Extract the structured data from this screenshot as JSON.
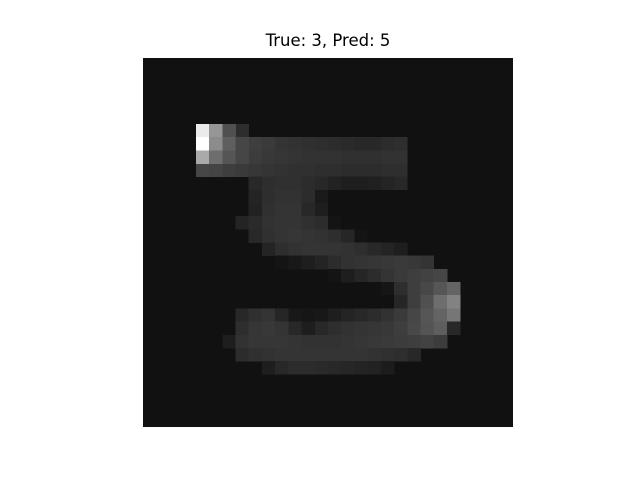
{
  "figure": {
    "title": "True: 3, Pred: 5"
  },
  "image": {
    "grid_size": 28,
    "description_colormap": "gray",
    "background_level": 17,
    "bright_cells": [
      [
        5,
        4,
        235
      ],
      [
        5,
        5,
        150
      ],
      [
        5,
        6,
        80
      ],
      [
        6,
        4,
        255
      ],
      [
        6,
        5,
        140
      ],
      [
        6,
        6,
        95
      ],
      [
        6,
        7,
        70
      ],
      [
        7,
        4,
        170
      ],
      [
        7,
        5,
        110
      ],
      [
        7,
        6,
        85
      ],
      [
        7,
        7,
        70
      ]
    ],
    "stroke_cells": [
      [
        5,
        7,
        45
      ],
      [
        6,
        8,
        62
      ],
      [
        6,
        9,
        58
      ],
      [
        6,
        10,
        52
      ],
      [
        6,
        11,
        50
      ],
      [
        6,
        12,
        48
      ],
      [
        6,
        13,
        46
      ],
      [
        6,
        14,
        44
      ],
      [
        6,
        15,
        42
      ],
      [
        6,
        16,
        40
      ],
      [
        6,
        17,
        40
      ],
      [
        6,
        18,
        44
      ],
      [
        6,
        19,
        46
      ],
      [
        7,
        8,
        60
      ],
      [
        7,
        9,
        56
      ],
      [
        7,
        10,
        54
      ],
      [
        7,
        11,
        52
      ],
      [
        7,
        12,
        50
      ],
      [
        7,
        13,
        50
      ],
      [
        7,
        14,
        50
      ],
      [
        7,
        15,
        48
      ],
      [
        7,
        16,
        48
      ],
      [
        7,
        17,
        48
      ],
      [
        7,
        18,
        50
      ],
      [
        7,
        19,
        50
      ],
      [
        8,
        4,
        70
      ],
      [
        8,
        5,
        68
      ],
      [
        8,
        6,
        62
      ],
      [
        8,
        7,
        58
      ],
      [
        8,
        8,
        55
      ],
      [
        8,
        9,
        52
      ],
      [
        8,
        10,
        50
      ],
      [
        8,
        11,
        48
      ],
      [
        8,
        12,
        48
      ],
      [
        8,
        13,
        46
      ],
      [
        8,
        14,
        46
      ],
      [
        8,
        15,
        44
      ],
      [
        8,
        16,
        44
      ],
      [
        8,
        17,
        44
      ],
      [
        8,
        18,
        46
      ],
      [
        8,
        19,
        46
      ],
      [
        9,
        8,
        40
      ],
      [
        9,
        9,
        46
      ],
      [
        9,
        10,
        48
      ],
      [
        9,
        11,
        48
      ],
      [
        9,
        12,
        44
      ],
      [
        9,
        13,
        40
      ],
      [
        9,
        14,
        34
      ],
      [
        9,
        15,
        30
      ],
      [
        9,
        16,
        30
      ],
      [
        9,
        17,
        32
      ],
      [
        9,
        18,
        36
      ],
      [
        9,
        19,
        40
      ],
      [
        10,
        8,
        36
      ],
      [
        10,
        9,
        46
      ],
      [
        10,
        10,
        50
      ],
      [
        10,
        11,
        50
      ],
      [
        10,
        12,
        44
      ],
      [
        10,
        13,
        26
      ],
      [
        10,
        14,
        14
      ],
      [
        10,
        15,
        10
      ],
      [
        10,
        16,
        10
      ],
      [
        10,
        17,
        12
      ],
      [
        10,
        18,
        14
      ],
      [
        11,
        8,
        34
      ],
      [
        11,
        9,
        48
      ],
      [
        11,
        10,
        52
      ],
      [
        11,
        11,
        52
      ],
      [
        11,
        12,
        40
      ],
      [
        11,
        13,
        30
      ],
      [
        11,
        14,
        14
      ],
      [
        11,
        15,
        6
      ],
      [
        11,
        16,
        4
      ],
      [
        11,
        17,
        6
      ],
      [
        11,
        18,
        10
      ],
      [
        12,
        7,
        36
      ],
      [
        12,
        8,
        42
      ],
      [
        12,
        9,
        50
      ],
      [
        12,
        10,
        52
      ],
      [
        12,
        11,
        52
      ],
      [
        12,
        12,
        48
      ],
      [
        12,
        13,
        44
      ],
      [
        12,
        14,
        20
      ],
      [
        12,
        15,
        8
      ],
      [
        12,
        16,
        6
      ],
      [
        12,
        17,
        8
      ],
      [
        12,
        18,
        12
      ],
      [
        13,
        8,
        40
      ],
      [
        13,
        9,
        48
      ],
      [
        13,
        10,
        52
      ],
      [
        13,
        11,
        54
      ],
      [
        13,
        12,
        52
      ],
      [
        13,
        13,
        50
      ],
      [
        13,
        14,
        46
      ],
      [
        13,
        15,
        38
      ],
      [
        13,
        16,
        20
      ],
      [
        13,
        17,
        12
      ],
      [
        13,
        18,
        14
      ],
      [
        14,
        9,
        36
      ],
      [
        14,
        10,
        46
      ],
      [
        14,
        11,
        50
      ],
      [
        14,
        12,
        52
      ],
      [
        14,
        13,
        52
      ],
      [
        14,
        14,
        52
      ],
      [
        14,
        15,
        50
      ],
      [
        14,
        16,
        46
      ],
      [
        14,
        17,
        40
      ],
      [
        14,
        18,
        36
      ],
      [
        14,
        19,
        30
      ],
      [
        15,
        10,
        20
      ],
      [
        15,
        11,
        24
      ],
      [
        15,
        12,
        30
      ],
      [
        15,
        13,
        36
      ],
      [
        15,
        14,
        44
      ],
      [
        15,
        15,
        50
      ],
      [
        15,
        16,
        52
      ],
      [
        15,
        17,
        54
      ],
      [
        15,
        18,
        56
      ],
      [
        15,
        19,
        58
      ],
      [
        15,
        20,
        56
      ],
      [
        15,
        21,
        52
      ],
      [
        16,
        14,
        20
      ],
      [
        16,
        15,
        30
      ],
      [
        16,
        16,
        38
      ],
      [
        16,
        17,
        44
      ],
      [
        16,
        18,
        52
      ],
      [
        16,
        19,
        58
      ],
      [
        16,
        20,
        62
      ],
      [
        16,
        21,
        66
      ],
      [
        16,
        22,
        70
      ],
      [
        17,
        16,
        14
      ],
      [
        17,
        17,
        14
      ],
      [
        17,
        18,
        22
      ],
      [
        17,
        19,
        46
      ],
      [
        17,
        20,
        62
      ],
      [
        17,
        21,
        72
      ],
      [
        17,
        22,
        86
      ],
      [
        17,
        23,
        100
      ],
      [
        18,
        17,
        10
      ],
      [
        18,
        18,
        14
      ],
      [
        18,
        19,
        38
      ],
      [
        18,
        20,
        62
      ],
      [
        18,
        21,
        80
      ],
      [
        18,
        22,
        110
      ],
      [
        18,
        23,
        130
      ],
      [
        19,
        7,
        40
      ],
      [
        19,
        8,
        48
      ],
      [
        19,
        9,
        52
      ],
      [
        19,
        10,
        38
      ],
      [
        19,
        11,
        24
      ],
      [
        19,
        12,
        22
      ],
      [
        19,
        13,
        24
      ],
      [
        19,
        14,
        30
      ],
      [
        19,
        15,
        36
      ],
      [
        19,
        16,
        40
      ],
      [
        19,
        17,
        44
      ],
      [
        19,
        18,
        50
      ],
      [
        19,
        19,
        58
      ],
      [
        19,
        20,
        70
      ],
      [
        19,
        21,
        86
      ],
      [
        19,
        22,
        100
      ],
      [
        19,
        23,
        118
      ],
      [
        20,
        7,
        46
      ],
      [
        20,
        8,
        54
      ],
      [
        20,
        9,
        56
      ],
      [
        20,
        10,
        52
      ],
      [
        20,
        11,
        40
      ],
      [
        20,
        12,
        30
      ],
      [
        20,
        13,
        40
      ],
      [
        20,
        14,
        46
      ],
      [
        20,
        15,
        50
      ],
      [
        20,
        16,
        52
      ],
      [
        20,
        17,
        54
      ],
      [
        20,
        18,
        56
      ],
      [
        20,
        19,
        62
      ],
      [
        20,
        20,
        72
      ],
      [
        20,
        21,
        84
      ],
      [
        20,
        22,
        94
      ],
      [
        20,
        23,
        40
      ],
      [
        21,
        6,
        30
      ],
      [
        21,
        7,
        50
      ],
      [
        21,
        8,
        54
      ],
      [
        21,
        9,
        54
      ],
      [
        21,
        10,
        54
      ],
      [
        21,
        11,
        52
      ],
      [
        21,
        12,
        50
      ],
      [
        21,
        13,
        50
      ],
      [
        21,
        14,
        50
      ],
      [
        21,
        15,
        52
      ],
      [
        21,
        16,
        54
      ],
      [
        21,
        17,
        56
      ],
      [
        21,
        18,
        58
      ],
      [
        21,
        19,
        60
      ],
      [
        21,
        20,
        62
      ],
      [
        21,
        21,
        66
      ],
      [
        21,
        22,
        60
      ],
      [
        22,
        7,
        44
      ],
      [
        22,
        8,
        48
      ],
      [
        22,
        9,
        50
      ],
      [
        22,
        10,
        52
      ],
      [
        22,
        11,
        52
      ],
      [
        22,
        12,
        52
      ],
      [
        22,
        13,
        52
      ],
      [
        22,
        14,
        52
      ],
      [
        22,
        15,
        52
      ],
      [
        22,
        16,
        52
      ],
      [
        22,
        17,
        50
      ],
      [
        22,
        18,
        48
      ],
      [
        22,
        19,
        46
      ],
      [
        22,
        20,
        40
      ],
      [
        23,
        9,
        30
      ],
      [
        23,
        10,
        40
      ],
      [
        23,
        11,
        44
      ],
      [
        23,
        12,
        44
      ],
      [
        23,
        13,
        42
      ],
      [
        23,
        14,
        40
      ],
      [
        23,
        15,
        38
      ],
      [
        23,
        16,
        36
      ],
      [
        23,
        17,
        34
      ],
      [
        23,
        18,
        28
      ]
    ]
  }
}
